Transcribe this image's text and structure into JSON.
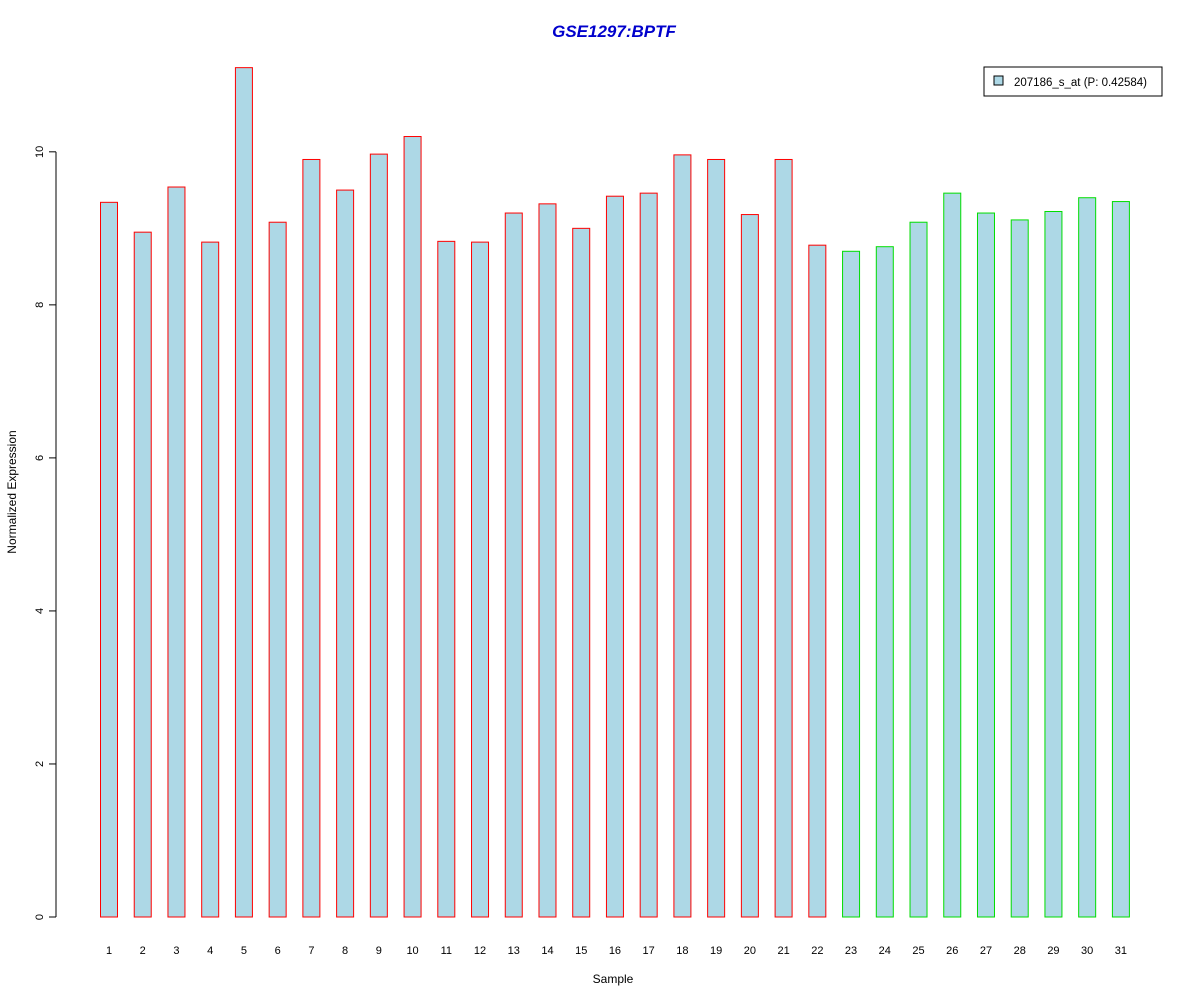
{
  "chart_data": {
    "type": "bar",
    "title": "GSE1297:BPTF",
    "xlabel": "Sample",
    "ylabel": "Normalized Expression",
    "ylim": [
      0,
      11.2
    ],
    "yticks": [
      "0",
      "2",
      "4",
      "6",
      "8",
      "10"
    ],
    "categories": [
      "1",
      "2",
      "3",
      "4",
      "5",
      "6",
      "7",
      "8",
      "9",
      "10",
      "11",
      "12",
      "13",
      "14",
      "15",
      "16",
      "17",
      "18",
      "19",
      "20",
      "21",
      "22",
      "23",
      "24",
      "25",
      "26",
      "27",
      "28",
      "29",
      "30",
      "31"
    ],
    "values": [
      9.34,
      8.95,
      9.54,
      8.82,
      11.1,
      9.08,
      9.9,
      9.5,
      9.97,
      10.2,
      8.83,
      8.82,
      9.2,
      9.32,
      9.0,
      9.42,
      9.46,
      9.96,
      9.9,
      9.18,
      9.9,
      8.78,
      8.7,
      8.76,
      9.08,
      9.46,
      9.2,
      9.11,
      9.22,
      9.4,
      9.35
    ],
    "group": [
      "red",
      "red",
      "red",
      "red",
      "red",
      "red",
      "red",
      "red",
      "red",
      "red",
      "red",
      "red",
      "red",
      "red",
      "red",
      "red",
      "red",
      "red",
      "red",
      "red",
      "red",
      "red",
      "green",
      "green",
      "green",
      "green",
      "green",
      "green",
      "green",
      "green",
      "green"
    ],
    "legend": {
      "label": "207186_s_at (P: 0.42584)",
      "position": "top-right"
    },
    "grid": false,
    "colors": {
      "title": "#0000cc",
      "bar_fill": "#add8e6",
      "red_border": "#ff0000",
      "green_border": "#00dd00",
      "axis": "#000000"
    }
  }
}
